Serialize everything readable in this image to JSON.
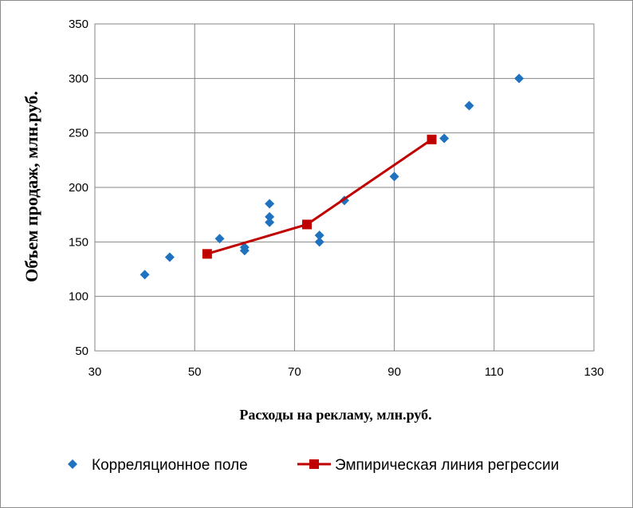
{
  "chart_data": {
    "type": "scatter",
    "xlabel": "Расходы на рекламу, млн.руб.",
    "ylabel": "Объем продаж, млн.руб.",
    "xlim": [
      30,
      130
    ],
    "ylim": [
      50,
      350
    ],
    "x_ticks": [
      30,
      50,
      70,
      90,
      110,
      130
    ],
    "y_ticks": [
      50,
      100,
      150,
      200,
      250,
      300,
      350
    ],
    "grid": "horizontal-and-vertical",
    "legend_position": "bottom",
    "series": [
      {
        "name": "Корреляционное поле",
        "kind": "scatter",
        "marker": "diamond",
        "color": "#1f72bf",
        "points": [
          {
            "x": 40,
            "y": 120
          },
          {
            "x": 45,
            "y": 136
          },
          {
            "x": 55,
            "y": 153
          },
          {
            "x": 60,
            "y": 145
          },
          {
            "x": 60,
            "y": 142
          },
          {
            "x": 65,
            "y": 185
          },
          {
            "x": 65,
            "y": 173
          },
          {
            "x": 65,
            "y": 168
          },
          {
            "x": 75,
            "y": 156
          },
          {
            "x": 75,
            "y": 150
          },
          {
            "x": 80,
            "y": 188
          },
          {
            "x": 90,
            "y": 210
          },
          {
            "x": 100,
            "y": 245
          },
          {
            "x": 105,
            "y": 275
          },
          {
            "x": 115,
            "y": 300
          }
        ]
      },
      {
        "name": "Эмпирическая линия регрессии",
        "kind": "line",
        "marker": "square",
        "color": "#c00000",
        "points": [
          {
            "x": 52.5,
            "y": 139
          },
          {
            "x": 72.5,
            "y": 166
          },
          {
            "x": 97.5,
            "y": 244
          }
        ]
      }
    ]
  }
}
